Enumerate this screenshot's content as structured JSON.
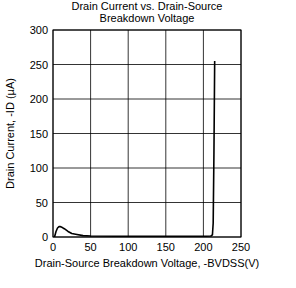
{
  "chart_data": {
    "type": "line",
    "title": [
      "Drain Current vs. Drain-Source",
      "Breakdown Voltage"
    ],
    "x_label": "Drain-Source Breakdown Voltage, -BVDSS(V)",
    "y_label": "Drain Current, -ID (µA)",
    "series": [
      {
        "name": "ID",
        "color": "#000000",
        "x": [
          2,
          4,
          6,
          8,
          10,
          12,
          15,
          20,
          25,
          30,
          40,
          50,
          100,
          150,
          200,
          210,
          212,
          213,
          214,
          215
        ],
        "values": [
          0,
          8,
          13,
          15,
          15,
          14,
          12,
          8,
          5,
          4,
          2,
          1.5,
          1,
          1,
          1,
          1.5,
          3,
          20,
          120,
          255
        ]
      }
    ],
    "xlim": [
      0,
      250
    ],
    "xticks": [
      0,
      50,
      100,
      150,
      200,
      250
    ],
    "ylim": [
      0,
      300
    ],
    "yticks": [
      0,
      50,
      100,
      150,
      200,
      250,
      300
    ],
    "grid": true
  }
}
